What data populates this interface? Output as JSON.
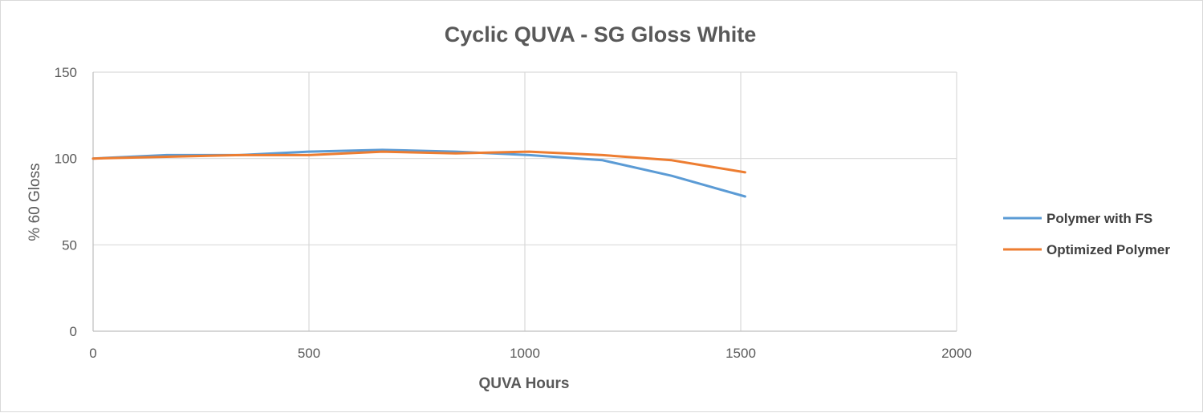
{
  "chart_data": {
    "type": "line",
    "title": "Cyclic QUVA - SG Gloss White",
    "xlabel": "QUVA Hours",
    "ylabel": "% 60 Gloss",
    "xlim": [
      0,
      2000
    ],
    "ylim": [
      0,
      150
    ],
    "xticks": [
      "0",
      "500",
      "1000",
      "1500",
      "2000"
    ],
    "yticks": [
      "0",
      "50",
      "100",
      "150"
    ],
    "grid": true,
    "legend_position": "right",
    "series": [
      {
        "name": "Polymer with FS",
        "color": "#5B9BD5",
        "x": [
          0,
          170,
          340,
          500,
          670,
          840,
          1010,
          1180,
          1340,
          1510
        ],
        "y": [
          100,
          102,
          102,
          104,
          105,
          104,
          102,
          99,
          90,
          78
        ]
      },
      {
        "name": "Optimized Polymer",
        "color": "#ED7D31",
        "x": [
          0,
          170,
          340,
          500,
          670,
          840,
          1010,
          1180,
          1340,
          1510
        ],
        "y": [
          100,
          101,
          102,
          102,
          104,
          103,
          104,
          102,
          99,
          92
        ]
      }
    ]
  }
}
